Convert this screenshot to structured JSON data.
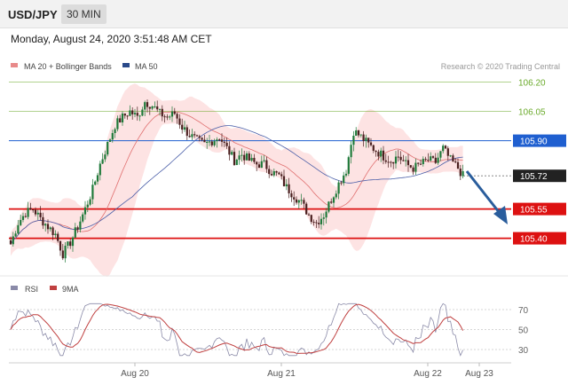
{
  "header": {
    "symbol": "USD/JPY",
    "timeframe": "30 MIN"
  },
  "datetime": "Monday, August 24, 2020 3:51:48 AM CET",
  "colors": {
    "bb_fill": "#fde0e0",
    "ma20": "#e07070",
    "ma50": "#4a5ea8",
    "bull": "#1f7a3a",
    "bear": "#4a1f1f",
    "resistance": "#6aaa2a",
    "blue_level": "#1f5fd0",
    "red_level": "#dd1111",
    "current": "#222222",
    "rsi": "#8a8aa8",
    "rsi_ma": "#c04040",
    "arrow": "#2a5d9c"
  },
  "chart_data": [
    {
      "type": "candlestick",
      "legend": [
        {
          "name": "MA 20 + Bollinger Bands",
          "color": "#e88a8a"
        },
        {
          "name": "MA 50",
          "color": "#2a4a8a"
        }
      ],
      "attribution": "Research © 2020 Trading Central",
      "ylim": [
        105.23,
        106.33
      ],
      "levels": [
        {
          "label": "106.20",
          "value": 106.2,
          "kind": "resistance"
        },
        {
          "label": "106.05",
          "value": 106.05,
          "kind": "resistance"
        },
        {
          "label": "105.90",
          "value": 105.9,
          "kind": "pivot"
        },
        {
          "label": "105.72",
          "value": 105.72,
          "kind": "current"
        },
        {
          "label": "105.55",
          "value": 105.55,
          "kind": "support"
        },
        {
          "label": "105.40",
          "value": 105.4,
          "kind": "support"
        }
      ],
      "x_ticks": [
        "Aug 20",
        "Aug 21",
        "Aug 22",
        "Aug 23"
      ],
      "price_anchors": [
        [
          0,
          105.37
        ],
        [
          3,
          105.48
        ],
        [
          6,
          105.53
        ],
        [
          9,
          105.55
        ],
        [
          12,
          105.5
        ],
        [
          15,
          105.46
        ],
        [
          18,
          105.42
        ],
        [
          21,
          105.32
        ],
        [
          24,
          105.38
        ],
        [
          27,
          105.46
        ],
        [
          30,
          105.55
        ],
        [
          33,
          105.65
        ],
        [
          36,
          105.78
        ],
        [
          39,
          105.88
        ],
        [
          42,
          105.98
        ],
        [
          45,
          106.02
        ],
        [
          48,
          106.05
        ],
        [
          51,
          106.02
        ],
        [
          54,
          106.1
        ],
        [
          57,
          106.08
        ],
        [
          60,
          106.04
        ],
        [
          63,
          106.02
        ],
        [
          66,
          106.04
        ],
        [
          69,
          105.97
        ],
        [
          72,
          105.93
        ],
        [
          75,
          105.9
        ],
        [
          78,
          105.88
        ],
        [
          81,
          105.9
        ],
        [
          84,
          105.92
        ],
        [
          87,
          105.86
        ],
        [
          90,
          105.8
        ],
        [
          93,
          105.83
        ],
        [
          96,
          105.8
        ],
        [
          99,
          105.78
        ],
        [
          102,
          105.78
        ],
        [
          105,
          105.74
        ],
        [
          108,
          105.72
        ],
        [
          111,
          105.66
        ],
        [
          114,
          105.62
        ],
        [
          117,
          105.58
        ],
        [
          120,
          105.52
        ],
        [
          123,
          105.48
        ],
        [
          126,
          105.52
        ],
        [
          129,
          105.6
        ],
        [
          132,
          105.68
        ],
        [
          135,
          105.75
        ],
        [
          138,
          105.95
        ],
        [
          141,
          105.92
        ],
        [
          144,
          105.88
        ],
        [
          147,
          105.85
        ],
        [
          150,
          105.82
        ],
        [
          153,
          105.8
        ],
        [
          156,
          105.82
        ],
        [
          159,
          105.78
        ],
        [
          162,
          105.76
        ],
        [
          165,
          105.78
        ],
        [
          168,
          105.8
        ],
        [
          171,
          105.79
        ],
        [
          174,
          105.86
        ],
        [
          177,
          105.8
        ],
        [
          180,
          105.76
        ],
        [
          182,
          105.72
        ]
      ]
    },
    {
      "type": "line",
      "legend": [
        {
          "name": "RSI",
          "color": "#8a8aa8"
        },
        {
          "name": "9MA",
          "color": "#c04040"
        }
      ],
      "ylim": [
        22,
        78
      ],
      "y_ticks": [
        "70",
        "50",
        "30"
      ]
    }
  ]
}
